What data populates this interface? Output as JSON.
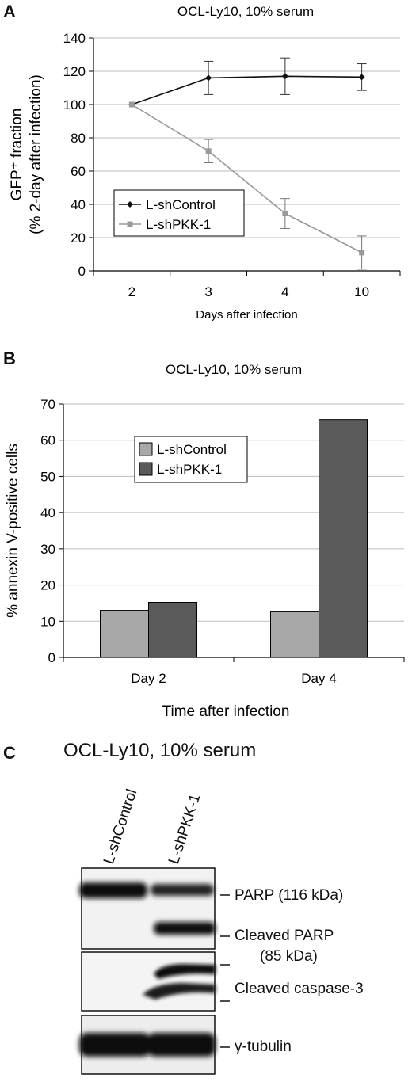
{
  "panels": {
    "a": {
      "letter": "A"
    },
    "b": {
      "letter": "B"
    },
    "c": {
      "letter": "C"
    }
  },
  "chart_data": [
    {
      "type": "line",
      "title": "OCL-Ly10, 10% serum",
      "xlabel": "Days after infection",
      "ylabel_line1": "GFP⁺ fraction",
      "ylabel_line2": "(% 2-day after infection)",
      "categories": [
        "2",
        "3",
        "4",
        "10"
      ],
      "ylim": [
        0,
        140
      ],
      "yticks": [
        0,
        20,
        40,
        60,
        80,
        100,
        120,
        140
      ],
      "grid": true,
      "legend_position": "lower-left",
      "series": [
        {
          "name": "L-shControl",
          "color": "#111111",
          "marker": "diamond",
          "values": [
            100,
            116,
            117,
            116.5
          ],
          "errors": [
            0,
            10,
            11,
            8
          ]
        },
        {
          "name": "L-shPKK-1",
          "color": "#999999",
          "marker": "square",
          "values": [
            100,
            72,
            34.5,
            11
          ],
          "errors": [
            0,
            7,
            9,
            10
          ]
        }
      ]
    },
    {
      "type": "bar",
      "title": "OCL-Ly10, 10% serum",
      "xlabel": "Time after infection",
      "ylabel": "% annexin V-positive cells",
      "categories": [
        "Day 2",
        "Day 4"
      ],
      "ylim": [
        0,
        70
      ],
      "yticks": [
        0,
        10,
        20,
        30,
        40,
        50,
        60,
        70
      ],
      "grid": true,
      "legend_position": "upper-left",
      "series": [
        {
          "name": "L-shControl",
          "color": "#a8a8a8",
          "values": [
            13,
            12.6
          ]
        },
        {
          "name": "L-shPKK-1",
          "color": "#5a5a5a",
          "values": [
            15.2,
            65.7
          ]
        }
      ]
    }
  ],
  "blot": {
    "title": "OCL-Ly10, 10% serum",
    "lanes": [
      "L-shControl",
      "L-shPKK-1"
    ],
    "labels": {
      "parp": "PARP (116 kDa)",
      "cleaved_parp_1": "Cleaved PARP",
      "cleaved_parp_2": "(85 kDa)",
      "caspase": "Cleaved caspase-3",
      "tubulin": "γ-tubulin"
    }
  }
}
